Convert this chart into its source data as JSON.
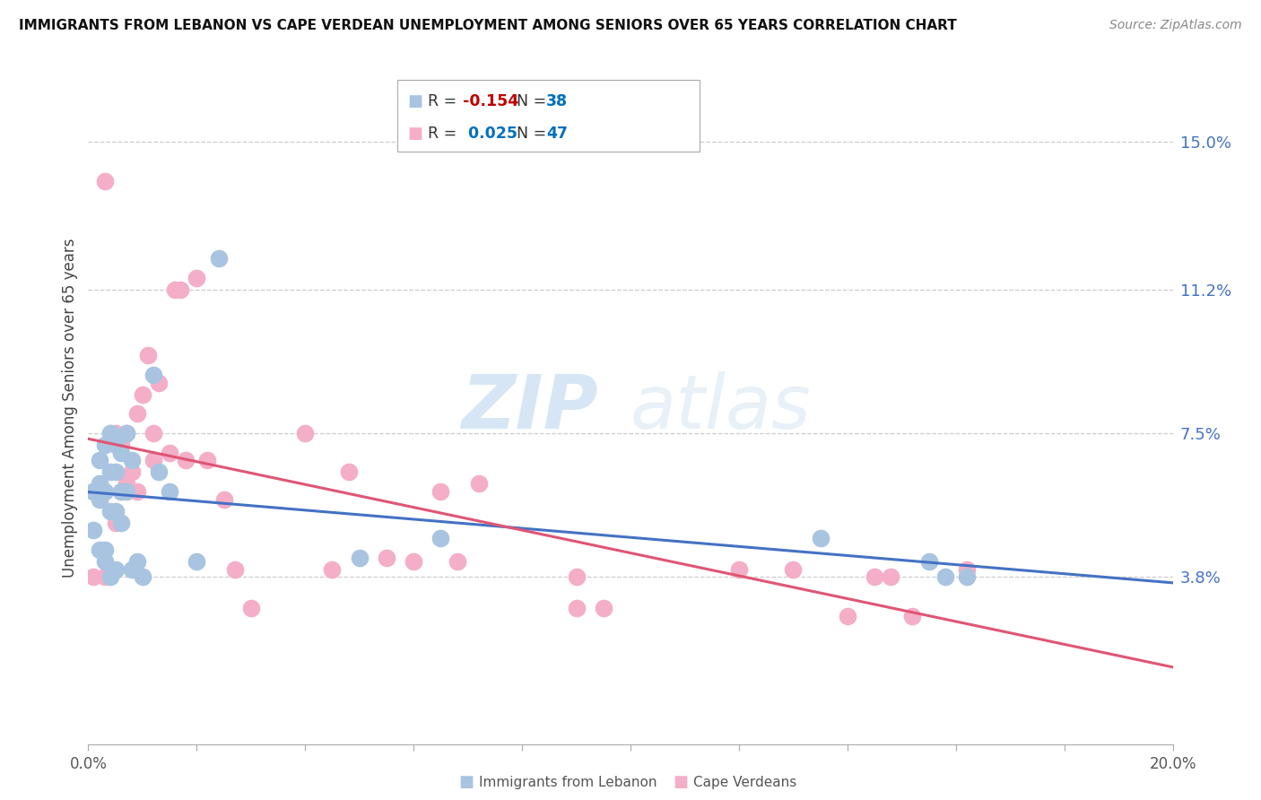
{
  "title": "IMMIGRANTS FROM LEBANON VS CAPE VERDEAN UNEMPLOYMENT AMONG SENIORS OVER 65 YEARS CORRELATION CHART",
  "source": "Source: ZipAtlas.com",
  "xlabel_left": "Immigrants from Lebanon",
  "xlabel_right": "Cape Verdeans",
  "ylabel": "Unemployment Among Seniors over 65 years",
  "xlim": [
    0.0,
    0.2
  ],
  "ylim": [
    -0.005,
    0.168
  ],
  "right_yticks": [
    0.038,
    0.075,
    0.112,
    0.15
  ],
  "right_yticklabels": [
    "3.8%",
    "7.5%",
    "11.2%",
    "15.0%"
  ],
  "xticks": [
    0.0,
    0.02,
    0.04,
    0.06,
    0.08,
    0.1,
    0.12,
    0.14,
    0.16,
    0.18,
    0.2
  ],
  "legend_blue_R": "-0.154",
  "legend_blue_N": "38",
  "legend_pink_R": "0.025",
  "legend_pink_N": "47",
  "blue_scatter_color": "#a8c4e0",
  "pink_scatter_color": "#f4aec8",
  "blue_line_color": "#4472c4",
  "pink_line_color": "#e05575",
  "blue_R_color": "#c00000",
  "blue_N_color": "#0070c0",
  "pink_R_color": "#0070c0",
  "pink_N_color": "#0070c0",
  "watermark_zip": "ZIP",
  "watermark_atlas": "atlas",
  "grid_color": "#cccccc",
  "blue_x": [
    0.001,
    0.001,
    0.002,
    0.002,
    0.002,
    0.002,
    0.003,
    0.003,
    0.003,
    0.003,
    0.004,
    0.004,
    0.004,
    0.004,
    0.005,
    0.005,
    0.005,
    0.005,
    0.006,
    0.006,
    0.006,
    0.007,
    0.007,
    0.008,
    0.008,
    0.009,
    0.01,
    0.012,
    0.013,
    0.015,
    0.02,
    0.024,
    0.05,
    0.065,
    0.135,
    0.155,
    0.158,
    0.162
  ],
  "blue_y": [
    0.06,
    0.05,
    0.058,
    0.045,
    0.062,
    0.068,
    0.042,
    0.06,
    0.072,
    0.045,
    0.065,
    0.055,
    0.075,
    0.038,
    0.065,
    0.055,
    0.072,
    0.04,
    0.07,
    0.06,
    0.052,
    0.075,
    0.06,
    0.068,
    0.04,
    0.042,
    0.038,
    0.09,
    0.065,
    0.06,
    0.042,
    0.12,
    0.043,
    0.048,
    0.048,
    0.042,
    0.038,
    0.038
  ],
  "pink_x": [
    0.001,
    0.001,
    0.003,
    0.003,
    0.004,
    0.004,
    0.005,
    0.005,
    0.006,
    0.006,
    0.007,
    0.007,
    0.008,
    0.009,
    0.009,
    0.01,
    0.011,
    0.012,
    0.012,
    0.013,
    0.015,
    0.016,
    0.017,
    0.018,
    0.02,
    0.022,
    0.025,
    0.027,
    0.03,
    0.04,
    0.045,
    0.048,
    0.055,
    0.06,
    0.065,
    0.068,
    0.072,
    0.09,
    0.09,
    0.095,
    0.12,
    0.13,
    0.14,
    0.145,
    0.148,
    0.152,
    0.162
  ],
  "pink_y": [
    0.06,
    0.038,
    0.14,
    0.038,
    0.075,
    0.04,
    0.075,
    0.052,
    0.072,
    0.06,
    0.075,
    0.062,
    0.065,
    0.08,
    0.06,
    0.085,
    0.095,
    0.075,
    0.068,
    0.088,
    0.07,
    0.112,
    0.112,
    0.068,
    0.115,
    0.068,
    0.058,
    0.04,
    0.03,
    0.075,
    0.04,
    0.065,
    0.043,
    0.042,
    0.06,
    0.042,
    0.062,
    0.038,
    0.03,
    0.03,
    0.04,
    0.04,
    0.028,
    0.038,
    0.038,
    0.028,
    0.04
  ]
}
